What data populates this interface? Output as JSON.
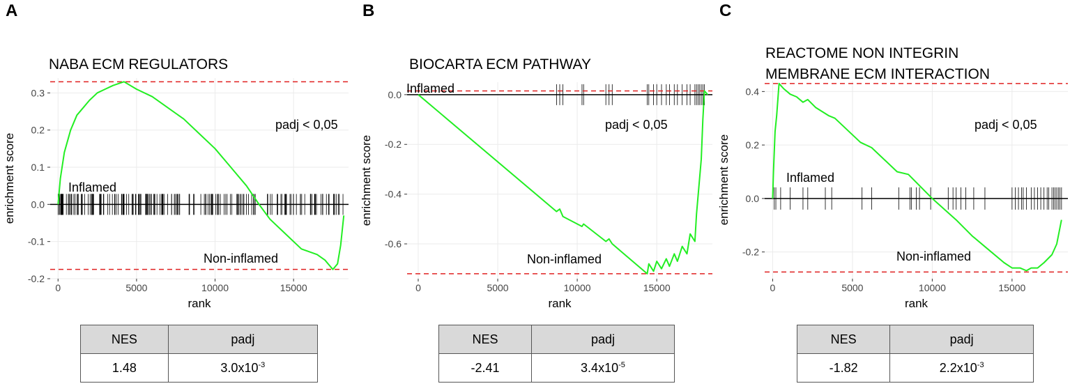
{
  "colors": {
    "curve": "#22ee22",
    "dashed": "#e02020",
    "grid": "#ebebeb",
    "hits": "#000000",
    "table_header": "#d9d9d9"
  },
  "chart_data": [
    {
      "type": "line",
      "panel": "A",
      "title": [
        "NABA ECM REGULATORS"
      ],
      "xlabel": "rank",
      "ylabel": "enrichment score",
      "xlim": [
        -500,
        18500
      ],
      "ylim": [
        -0.2,
        0.34
      ],
      "xticks": [
        0,
        5000,
        10000,
        15000
      ],
      "xtick_labels": [
        "0",
        "5000",
        "10000",
        "15000"
      ],
      "yticks": [
        -0.2,
        -0.1,
        0.0,
        0.1,
        0.2,
        0.3
      ],
      "ytick_labels": [
        "-0.2",
        "-0.1",
        "0.0",
        "0.1",
        "0.2",
        "0.3"
      ],
      "max_es": 0.33,
      "min_es": -0.175,
      "curve_x": [
        0,
        150,
        400,
        800,
        1200,
        1600,
        2000,
        2500,
        3000,
        3500,
        4200,
        5000,
        6000,
        7000,
        8000,
        9000,
        10000,
        11000,
        12000,
        12800,
        13500,
        14500,
        15500,
        16500,
        17000,
        17500,
        17800,
        18000,
        18200
      ],
      "curve_y": [
        0.0,
        0.07,
        0.14,
        0.2,
        0.24,
        0.26,
        0.28,
        0.3,
        0.31,
        0.32,
        0.33,
        0.31,
        0.29,
        0.26,
        0.23,
        0.19,
        0.15,
        0.1,
        0.05,
        0.0,
        -0.04,
        -0.08,
        -0.12,
        -0.135,
        -0.15,
        -0.175,
        -0.16,
        -0.11,
        -0.03
      ],
      "annotations": {
        "significance": "padj < 0,05",
        "up": "Inflamed",
        "down": "Non-inflamed"
      },
      "hit_density": "dense",
      "table": {
        "headers": [
          "NES",
          "padj"
        ],
        "nes": "1.48",
        "padj_base": "3.0x10",
        "padj_exp": "-3"
      }
    },
    {
      "type": "line",
      "panel": "B",
      "title": [
        "BIOCARTA ECM PATHWAY"
      ],
      "xlabel": "rank",
      "ylabel": "enrichment score",
      "xlim": [
        -700,
        18500
      ],
      "ylim": [
        -0.74,
        0.05
      ],
      "xticks": [
        0,
        5000,
        10000,
        15000
      ],
      "xtick_labels": [
        "0",
        "5000",
        "10000",
        "15000"
      ],
      "yticks": [
        -0.6,
        -0.4,
        -0.2,
        0.0
      ],
      "ytick_labels": [
        "-0.6",
        "-0.4",
        "-0.2",
        "0.0"
      ],
      "max_es": 0.015,
      "min_es": -0.72,
      "curve_x": [
        0,
        8700,
        8900,
        9100,
        10300,
        10400,
        11800,
        12000,
        12200,
        14400,
        14500,
        14800,
        15000,
        15300,
        15600,
        15800,
        16100,
        16300,
        16600,
        16900,
        17100,
        17400,
        17500,
        17800,
        17900,
        18000,
        18200
      ],
      "curve_y": [
        0.0,
        -0.47,
        -0.46,
        -0.49,
        -0.53,
        -0.52,
        -0.59,
        -0.58,
        -0.6,
        -0.72,
        -0.68,
        -0.71,
        -0.67,
        -0.7,
        -0.66,
        -0.69,
        -0.64,
        -0.67,
        -0.61,
        -0.64,
        -0.56,
        -0.59,
        -0.48,
        -0.26,
        -0.1,
        0.015,
        0.0
      ],
      "hits": [
        8700,
        8900,
        9100,
        10300,
        10400,
        11800,
        12000,
        12200,
        14400,
        14500,
        14800,
        15000,
        15300,
        15600,
        15800,
        16100,
        16300,
        16600,
        16900,
        17100,
        17400,
        17500,
        17600,
        17700,
        17800,
        17900,
        18000
      ],
      "annotations": {
        "significance": "padj < 0,05",
        "up": "Inflamed",
        "down": "Non-inflamed"
      },
      "table": {
        "headers": [
          "NES",
          "padj"
        ],
        "nes": "-2.41",
        "padj_base": "3.4x10",
        "padj_exp": "-5"
      }
    },
    {
      "type": "line",
      "panel": "C",
      "title": [
        "REACTOME NON INTEGRIN",
        "MEMBRANE ECM INTERACTION"
      ],
      "xlabel": "rank",
      "ylabel": "enrichment score",
      "xlim": [
        -500,
        18500
      ],
      "ylim": [
        -0.3,
        0.44
      ],
      "xticks": [
        0,
        5000,
        10000,
        15000
      ],
      "xtick_labels": [
        "0",
        "5000",
        "10000",
        "15000"
      ],
      "yticks": [
        -0.2,
        0.0,
        0.2,
        0.4
      ],
      "ytick_labels": [
        "-0.2",
        "0.0",
        "0.2",
        "0.4"
      ],
      "max_es": 0.43,
      "min_es": -0.275,
      "curve_x": [
        0,
        50,
        150,
        250,
        400,
        550,
        700,
        1100,
        1500,
        1900,
        2200,
        2700,
        3500,
        3900,
        5500,
        6200,
        7800,
        8500,
        10000,
        11500,
        12500,
        13500,
        14500,
        15000,
        15500,
        15900,
        16200,
        16600,
        17000,
        17500,
        17800,
        18100
      ],
      "curve_y": [
        0.0,
        0.1,
        0.25,
        0.31,
        0.43,
        0.42,
        0.41,
        0.39,
        0.38,
        0.36,
        0.37,
        0.34,
        0.31,
        0.3,
        0.21,
        0.19,
        0.1,
        0.09,
        0.0,
        -0.08,
        -0.14,
        -0.19,
        -0.24,
        -0.26,
        -0.26,
        -0.27,
        -0.26,
        -0.26,
        -0.24,
        -0.21,
        -0.17,
        -0.08
      ],
      "hits": [
        100,
        200,
        500,
        1100,
        1900,
        2200,
        3300,
        3700,
        5600,
        6200,
        7900,
        8600,
        8700,
        9000,
        9200,
        9900,
        11000,
        11300,
        11500,
        11800,
        12100,
        12600,
        13300,
        15000,
        15200,
        15400,
        15600,
        15700,
        15900,
        16200,
        16400,
        16600,
        16800,
        17000,
        17200,
        17300,
        17500,
        17600,
        17700,
        17800,
        17900,
        18000,
        18100
      ],
      "annotations": {
        "significance": "padj < 0,05",
        "up": "Inflamed",
        "down": "Non-inflamed"
      },
      "table": {
        "headers": [
          "NES",
          "padj"
        ],
        "nes": "-1.82",
        "padj_base": "2.2x10",
        "padj_exp": "-3"
      }
    }
  ]
}
